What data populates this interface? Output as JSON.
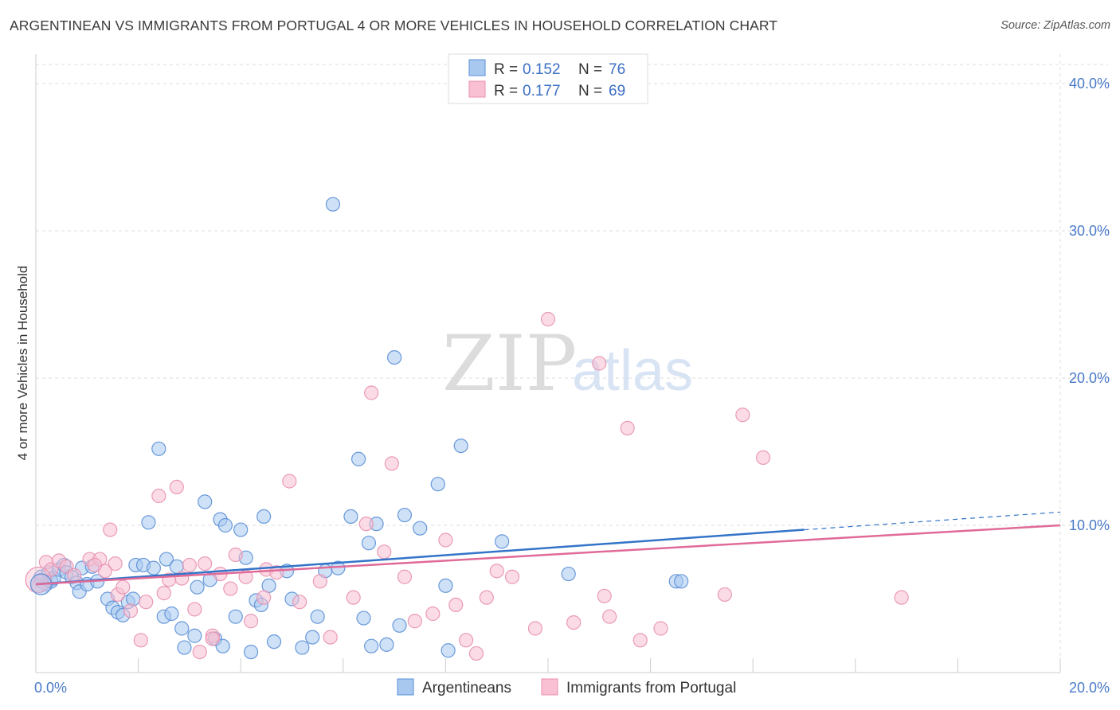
{
  "header": {
    "title": "ARGENTINEAN VS IMMIGRANTS FROM PORTUGAL 4 OR MORE VEHICLES IN HOUSEHOLD CORRELATION CHART",
    "source": "Source: ZipAtlas.com"
  },
  "watermark": {
    "zip": "ZIP",
    "atlas": "atlas"
  },
  "legend": {
    "r_label": "R =",
    "n_label": "N =",
    "entries": [
      {
        "r": "0.152",
        "n": "76"
      },
      {
        "r": "0.177",
        "n": "69"
      }
    ]
  },
  "chart_data": {
    "type": "scatter",
    "title": "ARGENTINEAN VS IMMIGRANTS FROM PORTUGAL 4 OR MORE VEHICLES IN HOUSEHOLD CORRELATION CHART",
    "xlabel": "",
    "ylabel": "4 or more Vehicles in Household",
    "xlim": [
      0,
      20
    ],
    "ylim": [
      0,
      42
    ],
    "x_tick_labels": [
      "0.0%",
      "20.0%"
    ],
    "y_ticks": [
      {
        "value": 10,
        "label": "10.0%"
      },
      {
        "value": 20,
        "label": "20.0%"
      },
      {
        "value": 30,
        "label": "30.0%"
      },
      {
        "value": 40,
        "label": "40.0%"
      }
    ],
    "colors": {
      "blue_fill": "#a8c8f0",
      "blue_stroke": "#5a8fd6",
      "blue_line": "#3374c8",
      "pink_fill": "#f8c0d2",
      "pink_stroke": "#e890b0",
      "pink_line": "#e06a98",
      "grid": "#dddddd",
      "tick_text": "#4a7ac8"
    },
    "series": [
      {
        "name": "Argentineans",
        "r": 0.152,
        "n": 76,
        "trend": {
          "x0": 0,
          "y0": 6.0,
          "x1": 15,
          "y1": 9.7,
          "dash_to_x": 20,
          "dash_to_y": 10.9
        },
        "points": [
          [
            0.1,
            6.5
          ],
          [
            0.2,
            6.0
          ],
          [
            0.25,
            6.8
          ],
          [
            0.3,
            6.2
          ],
          [
            0.35,
            6.4
          ],
          [
            0.45,
            7.0
          ],
          [
            0.55,
            7.3
          ],
          [
            0.6,
            6.8
          ],
          [
            0.7,
            6.5
          ],
          [
            0.8,
            6.1
          ],
          [
            0.85,
            5.5
          ],
          [
            0.9,
            7.1
          ],
          [
            1.0,
            6.0
          ],
          [
            1.1,
            7.2
          ],
          [
            1.2,
            6.2
          ],
          [
            1.4,
            5.0
          ],
          [
            1.5,
            4.4
          ],
          [
            1.6,
            4.1
          ],
          [
            1.7,
            3.9
          ],
          [
            1.8,
            4.8
          ],
          [
            1.9,
            5.0
          ],
          [
            1.95,
            7.3
          ],
          [
            2.1,
            7.3
          ],
          [
            2.2,
            10.2
          ],
          [
            2.3,
            7.1
          ],
          [
            2.4,
            15.2
          ],
          [
            2.5,
            3.8
          ],
          [
            2.55,
            7.7
          ],
          [
            2.65,
            4.0
          ],
          [
            2.75,
            7.2
          ],
          [
            2.85,
            3.0
          ],
          [
            2.9,
            1.7
          ],
          [
            3.1,
            2.5
          ],
          [
            3.15,
            5.8
          ],
          [
            3.3,
            11.6
          ],
          [
            3.4,
            6.3
          ],
          [
            3.5,
            2.3
          ],
          [
            3.6,
            10.4
          ],
          [
            3.65,
            1.8
          ],
          [
            3.7,
            10.0
          ],
          [
            3.9,
            3.8
          ],
          [
            4.0,
            9.7
          ],
          [
            4.1,
            7.8
          ],
          [
            4.2,
            1.4
          ],
          [
            4.3,
            4.9
          ],
          [
            4.4,
            4.6
          ],
          [
            4.45,
            10.6
          ],
          [
            4.55,
            5.9
          ],
          [
            4.65,
            2.1
          ],
          [
            4.9,
            6.9
          ],
          [
            5.0,
            5.0
          ],
          [
            5.2,
            1.7
          ],
          [
            5.4,
            2.4
          ],
          [
            5.5,
            3.8
          ],
          [
            5.65,
            6.9
          ],
          [
            5.8,
            31.8
          ],
          [
            5.9,
            7.1
          ],
          [
            6.15,
            10.6
          ],
          [
            6.3,
            14.5
          ],
          [
            6.4,
            3.7
          ],
          [
            6.5,
            8.8
          ],
          [
            6.55,
            1.8
          ],
          [
            6.65,
            10.1
          ],
          [
            6.85,
            1.9
          ],
          [
            7.0,
            21.4
          ],
          [
            7.1,
            3.2
          ],
          [
            7.2,
            10.7
          ],
          [
            7.5,
            9.8
          ],
          [
            7.85,
            12.8
          ],
          [
            8.0,
            5.9
          ],
          [
            8.05,
            1.5
          ],
          [
            8.3,
            15.4
          ],
          [
            9.1,
            8.9
          ],
          [
            10.4,
            6.7
          ],
          [
            12.5,
            6.2
          ],
          [
            12.6,
            6.2
          ]
        ]
      },
      {
        "name": "Immigrants from Portugal",
        "r": 0.177,
        "n": 69,
        "trend": {
          "x0": 0,
          "y0": 6.0,
          "x1": 20,
          "y1": 10.0
        },
        "points": [
          [
            0.1,
            6.2
          ],
          [
            0.2,
            7.5
          ],
          [
            0.3,
            7.0
          ],
          [
            0.45,
            7.6
          ],
          [
            0.6,
            7.2
          ],
          [
            0.75,
            6.6
          ],
          [
            1.05,
            7.7
          ],
          [
            1.25,
            7.7
          ],
          [
            1.35,
            6.9
          ],
          [
            1.45,
            9.7
          ],
          [
            1.55,
            7.4
          ],
          [
            1.6,
            5.3
          ],
          [
            1.7,
            5.8
          ],
          [
            1.85,
            4.2
          ],
          [
            2.05,
            2.2
          ],
          [
            2.15,
            4.8
          ],
          [
            2.4,
            12.0
          ],
          [
            2.5,
            5.4
          ],
          [
            2.6,
            6.3
          ],
          [
            2.75,
            12.6
          ],
          [
            2.85,
            6.4
          ],
          [
            3.0,
            7.3
          ],
          [
            3.1,
            4.3
          ],
          [
            3.2,
            1.4
          ],
          [
            3.3,
            7.4
          ],
          [
            3.45,
            2.5
          ],
          [
            3.6,
            6.7
          ],
          [
            3.8,
            5.7
          ],
          [
            3.9,
            8.0
          ],
          [
            4.1,
            6.5
          ],
          [
            4.2,
            3.5
          ],
          [
            4.45,
            5.1
          ],
          [
            4.5,
            7.0
          ],
          [
            4.7,
            6.8
          ],
          [
            4.95,
            13.0
          ],
          [
            5.15,
            4.8
          ],
          [
            5.55,
            6.2
          ],
          [
            5.75,
            2.4
          ],
          [
            6.2,
            5.1
          ],
          [
            6.45,
            10.1
          ],
          [
            6.55,
            19.0
          ],
          [
            6.8,
            8.2
          ],
          [
            6.95,
            14.2
          ],
          [
            7.2,
            6.5
          ],
          [
            7.4,
            3.5
          ],
          [
            7.75,
            4.0
          ],
          [
            8.0,
            9.0
          ],
          [
            8.2,
            4.6
          ],
          [
            8.4,
            2.2
          ],
          [
            8.6,
            1.3
          ],
          [
            8.8,
            5.1
          ],
          [
            9.0,
            6.9
          ],
          [
            9.3,
            6.5
          ],
          [
            9.75,
            3.0
          ],
          [
            10.0,
            24.0
          ],
          [
            10.5,
            3.4
          ],
          [
            11.0,
            21.0
          ],
          [
            11.1,
            5.2
          ],
          [
            11.2,
            3.8
          ],
          [
            11.55,
            16.6
          ],
          [
            11.8,
            2.2
          ],
          [
            12.2,
            3.0
          ],
          [
            13.45,
            5.3
          ],
          [
            13.8,
            17.5
          ],
          [
            14.2,
            14.6
          ],
          [
            16.9,
            5.1
          ],
          [
            0.05,
            5.9
          ],
          [
            1.15,
            7.3
          ],
          [
            3.45,
            2.3
          ]
        ]
      }
    ]
  }
}
